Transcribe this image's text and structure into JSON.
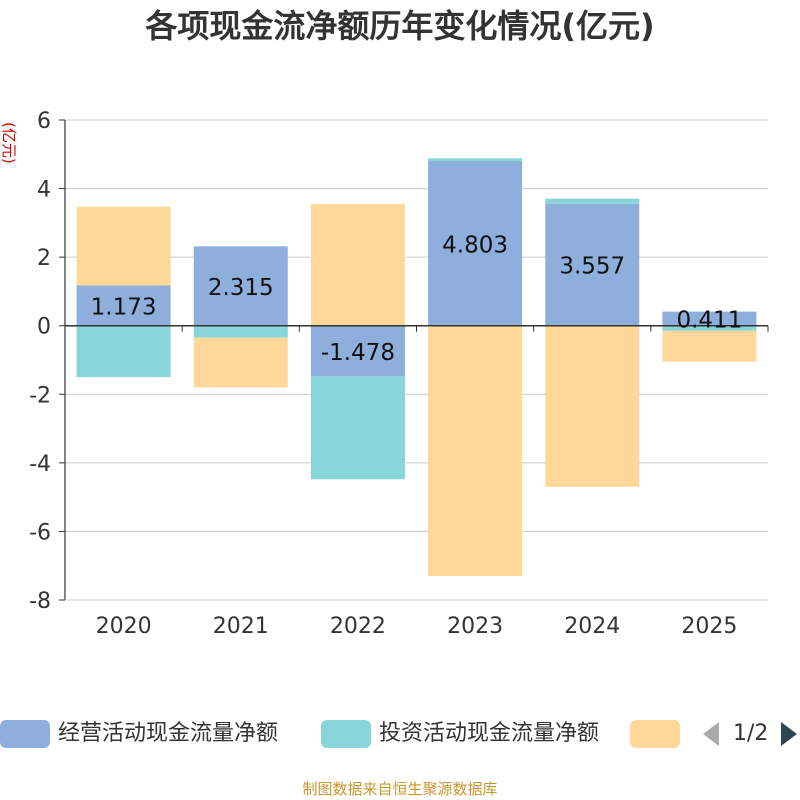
{
  "chart_data": {
    "type": "bar",
    "stacked": true,
    "title": "各项现金流净额历年变化情况(亿元)",
    "ylabel": "(亿元)",
    "xlabel": "",
    "ylim": [
      -8,
      6
    ],
    "yticks": [
      -8,
      -6,
      -4,
      -2,
      0,
      2,
      4,
      6
    ],
    "grid": true,
    "legend_position": "bottom",
    "categories": [
      "2020",
      "2021",
      "2022",
      "2023",
      "2024",
      "2025"
    ],
    "series": [
      {
        "name": "经营活动现金流量净额",
        "color": "#8eaedc",
        "values": [
          1.173,
          2.315,
          -1.478,
          4.803,
          3.557,
          0.411
        ],
        "labels": [
          "1.173",
          "2.315",
          "-1.478",
          "4.803",
          "3.557",
          "0.411"
        ]
      },
      {
        "name": "投资活动现金流量净额",
        "color": "#88d6d9",
        "values": [
          -1.5,
          -0.35,
          -3.0,
          0.08,
          0.15,
          -0.15
        ]
      },
      {
        "name": "",
        "color": "#ffd899",
        "values": [
          2.3,
          -1.45,
          3.55,
          -7.3,
          -4.7,
          -0.9
        ]
      }
    ]
  },
  "legend": {
    "items": [
      "经营活动现金流量净额",
      "投资活动现金流量净额",
      ""
    ],
    "page_indicator": "1/2"
  },
  "footer": {
    "source_text": "制图数据来自恒生聚源数据库"
  }
}
